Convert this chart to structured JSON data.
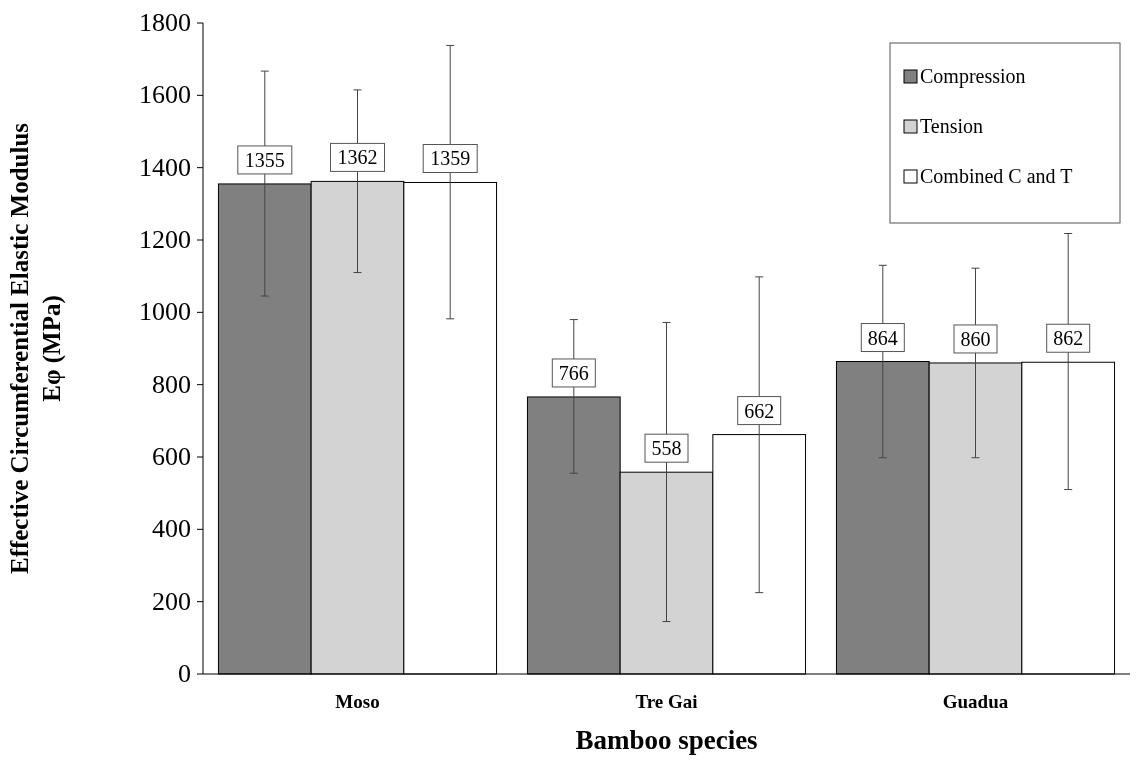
{
  "chart_data": {
    "type": "bar",
    "xlabel": "Bamboo species",
    "ylabel": "Effective Circumferential Elastic Modulus\nEφ (MPa)",
    "categories": [
      "Moso",
      "Tre Gai",
      "Guadua"
    ],
    "series": [
      {
        "name": "Compression",
        "color": "#808080",
        "values": [
          1355,
          766,
          864
        ],
        "errors": [
          [
            1045,
            1667
          ],
          [
            555,
            980
          ],
          [
            598,
            1130
          ]
        ]
      },
      {
        "name": "Tension",
        "color": "#d3d3d3",
        "values": [
          1362,
          558,
          860
        ],
        "errors": [
          [
            1110,
            1615
          ],
          [
            145,
            972
          ],
          [
            598,
            1122
          ]
        ]
      },
      {
        "name": "Combined C and T",
        "color": "#ffffff",
        "values": [
          1359,
          662,
          862
        ],
        "errors": [
          [
            982,
            1738
          ],
          [
            225,
            1098
          ],
          [
            510,
            1218
          ]
        ]
      }
    ],
    "ylim": [
      0,
      1800
    ],
    "yticks": [
      0,
      200,
      400,
      600,
      800,
      1000,
      1200,
      1400,
      1600,
      1800
    ],
    "data_labels": true,
    "legend": "top right",
    "grid": false
  }
}
